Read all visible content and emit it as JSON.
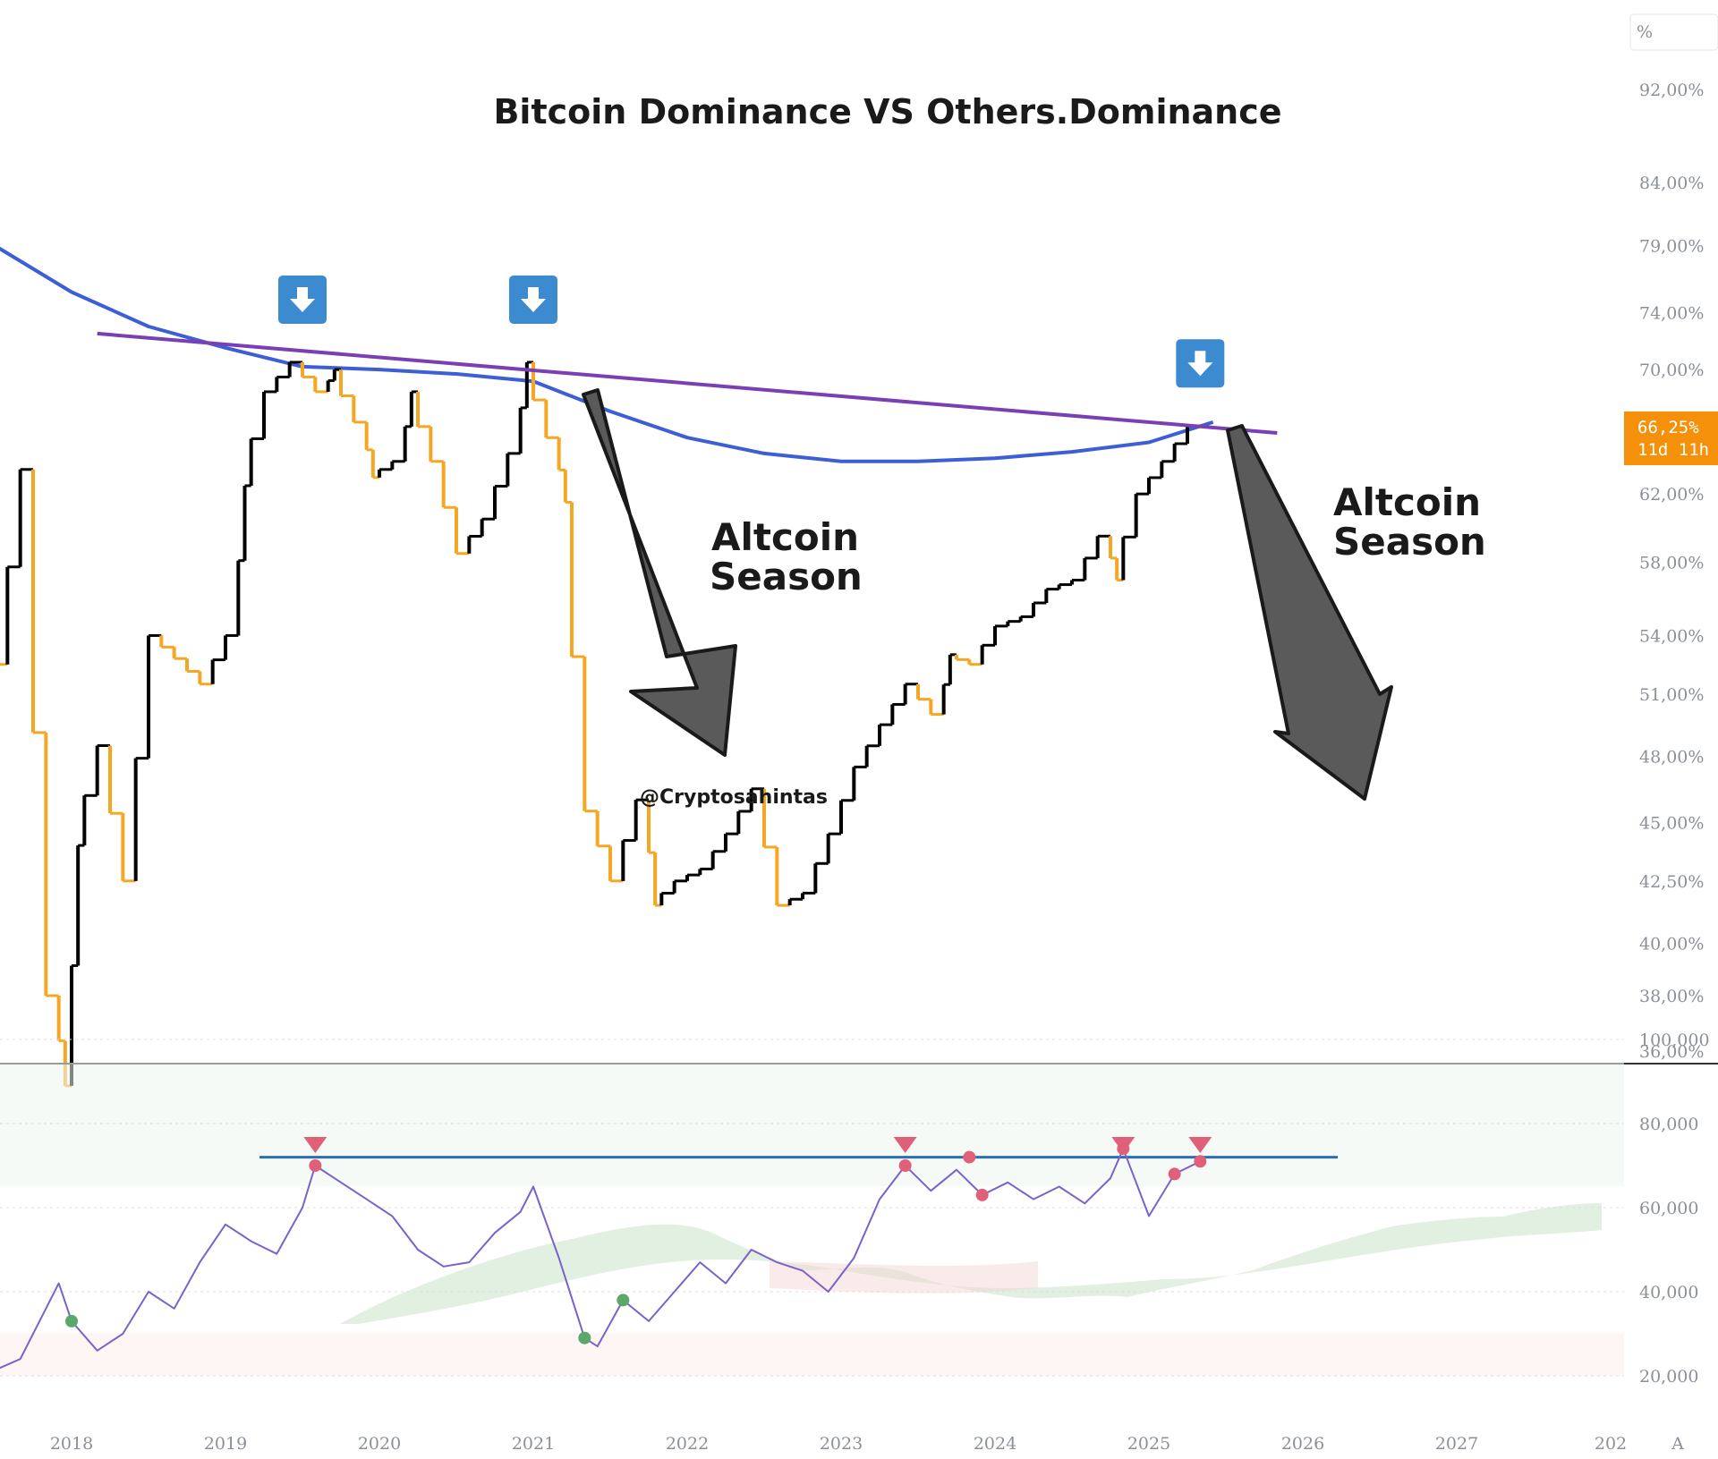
{
  "chart_data": [
    {
      "type": "candlestick",
      "title": "Bitcoin Dominance VS Others.Dominance",
      "unit_label": "%",
      "y_ticks": [
        "92,00%",
        "84,00%",
        "79,00%",
        "74,00%",
        "70,00%",
        "62,00%",
        "58,00%",
        "54,00%",
        "51,00%",
        "48,00%",
        "45,00%",
        "42,50%",
        "40,00%",
        "38,00%",
        "36,00%"
      ],
      "y_scale": "log",
      "x_ticks": [
        "2018",
        "2019",
        "2020",
        "2021",
        "2022",
        "2023",
        "2024",
        "2025",
        "2026",
        "2027",
        "202"
      ],
      "current_price_label": "66,25%",
      "countdown_label": "11d 11h",
      "bullish_color": "#000000",
      "bearish_color": "#f5a623",
      "series": [
        {
          "name": "",
          "x": [
            "2017-06",
            "2017-08",
            "2017-10",
            "2017-12",
            "2018-01",
            "2018-02",
            "2018-04",
            "2018-06",
            "2018-08",
            "2018-10",
            "2018-12",
            "2019-02",
            "2019-03",
            "2019-05",
            "2019-07",
            "2019-09",
            "2019-10",
            "2019-12",
            "2020-01",
            "2020-03",
            "2020-04",
            "2020-06",
            "2020-08",
            "2020-10",
            "2020-12",
            "2021-01",
            "2021-03",
            "2021-04",
            "2021-06",
            "2021-08",
            "2021-10",
            "2021-11",
            "2022-01",
            "2022-03",
            "2022-05",
            "2022-07",
            "2022-09",
            "2022-11",
            "2023-01",
            "2023-03",
            "2023-05",
            "2023-07",
            "2023-09",
            "2023-10",
            "2023-12",
            "2024-02",
            "2024-04",
            "2024-06",
            "2024-08",
            "2024-10",
            "2024-11",
            "2025-01",
            "2025-03",
            "2025-05"
          ],
          "y": [
            55.5,
            52.5,
            63.5,
            38.0,
            34.8,
            44.0,
            48.5,
            42.5,
            54.0,
            52.8,
            51.5,
            54.0,
            62.5,
            68.5,
            70.5,
            68.5,
            70.0,
            66.5,
            63.0,
            64.0,
            68.5,
            64.0,
            58.5,
            60.5,
            64.5,
            70.5,
            65.5,
            61.5,
            45.5,
            42.5,
            46.0,
            41.5,
            42.5,
            43.0,
            44.5,
            46.5,
            41.5,
            42.0,
            44.5,
            47.5,
            49.5,
            51.5,
            50.0,
            53.0,
            52.5,
            54.5,
            55.0,
            56.5,
            57.0,
            59.5,
            57.0,
            62.0,
            64.0,
            66.25
          ]
        },
        {
          "name": "",
          "type": "moving_average",
          "color": "#3d5fd6",
          "x": [
            "2017-01",
            "2017-07",
            "2018-01",
            "2018-07",
            "2019-01",
            "2019-07",
            "2020-01",
            "2020-07",
            "2021-01",
            "2021-07",
            "2022-01",
            "2022-07",
            "2023-01",
            "2023-07",
            "2024-01",
            "2024-07",
            "2025-01",
            "2025-06"
          ],
          "y": [
            86.0,
            79.0,
            75.5,
            73.0,
            71.5,
            70.2,
            70.0,
            69.7,
            69.2,
            67.2,
            65.5,
            64.5,
            64.0,
            64.0,
            64.2,
            64.6,
            65.2,
            66.5
          ]
        },
        {
          "name": "",
          "type": "trendline",
          "color": "#7b3fb5",
          "x": [
            "2018-03",
            "2025-11"
          ],
          "y": [
            72.5,
            65.8
          ]
        }
      ],
      "markers": [
        "2019-07",
        "2021-01",
        "2025-05"
      ],
      "annotations": [
        {
          "text_line1": "Altcoin",
          "text_line2": "Season"
        },
        {
          "text_line1": "Altcoin",
          "text_line2": "Season"
        }
      ],
      "watermark": "@Cryptosahintas"
    },
    {
      "type": "line",
      "y_ticks": [
        "100,000",
        "80,000",
        "60,000",
        "40,000",
        "20,000"
      ],
      "ylim": [
        16,
        100
      ],
      "level_line": 72,
      "line_color": "#7b62c9",
      "level_color": "#2a6fb0",
      "series": [
        {
          "name": "",
          "x": [
            "2017-06",
            "2017-09",
            "2017-12",
            "2018-01",
            "2018-03",
            "2018-05",
            "2018-07",
            "2018-09",
            "2018-11",
            "2019-01",
            "2019-03",
            "2019-05",
            "2019-07",
            "2019-08",
            "2019-10",
            "2019-12",
            "2020-02",
            "2020-04",
            "2020-06",
            "2020-08",
            "2020-10",
            "2020-12",
            "2021-01",
            "2021-03",
            "2021-05",
            "2021-06",
            "2021-08",
            "2021-10",
            "2021-12",
            "2022-02",
            "2022-04",
            "2022-06",
            "2022-08",
            "2022-10",
            "2022-12",
            "2023-02",
            "2023-04",
            "2023-06",
            "2023-08",
            "2023-10",
            "2023-12",
            "2024-02",
            "2024-04",
            "2024-06",
            "2024-08",
            "2024-10",
            "2024-11",
            "2025-01",
            "2025-03",
            "2025-05"
          ],
          "y": [
            20,
            24,
            42,
            33,
            26,
            30,
            40,
            36,
            47,
            56,
            52,
            49,
            60,
            70,
            66,
            62,
            58,
            50,
            46,
            47,
            54,
            59,
            65,
            48,
            29,
            27,
            38,
            33,
            40,
            47,
            42,
            50,
            47,
            45,
            40,
            48,
            62,
            70,
            64,
            69,
            63,
            66,
            62,
            65,
            61,
            67,
            74,
            58,
            68,
            71
          ]
        }
      ],
      "overbought_points": [
        "2019-08",
        "2023-06",
        "2023-11",
        "2023-12",
        "2024-11",
        "2025-03",
        "2025-05"
      ],
      "oversold_points": [
        "2018-01",
        "2021-05",
        "2021-08"
      ]
    }
  ]
}
